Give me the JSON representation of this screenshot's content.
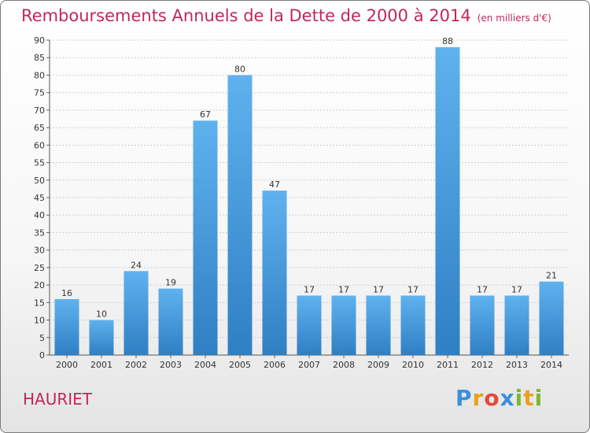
{
  "chart_data": {
    "type": "bar",
    "title": "Remboursements Annuels de la Dette de 2000 à 2014",
    "subtitle": "(en milliers d'€)",
    "categories": [
      "2000",
      "2001",
      "2002",
      "2003",
      "2004",
      "2005",
      "2006",
      "2007",
      "2008",
      "2009",
      "2010",
      "2011",
      "2012",
      "2013",
      "2014"
    ],
    "values": [
      16,
      10,
      24,
      19,
      67,
      80,
      47,
      17,
      17,
      17,
      17,
      88,
      17,
      17,
      21
    ],
    "ylim": [
      0,
      90
    ],
    "yticks": [
      0,
      5,
      10,
      15,
      20,
      25,
      30,
      35,
      40,
      45,
      50,
      55,
      60,
      65,
      70,
      75,
      80,
      85,
      90
    ],
    "grid": true,
    "bar_color": "#3d94d6",
    "title_color": "#c0285a"
  },
  "commune": "HAURIET",
  "logo": {
    "letters": [
      "P",
      "r",
      "o",
      "x",
      "i",
      "t",
      "i"
    ],
    "colors": [
      "#3b8fd9",
      "#e9a21c",
      "#e14b3a",
      "#3b8fd9",
      "#7ab92e",
      "#e9a21c",
      "#7ab92e"
    ]
  }
}
